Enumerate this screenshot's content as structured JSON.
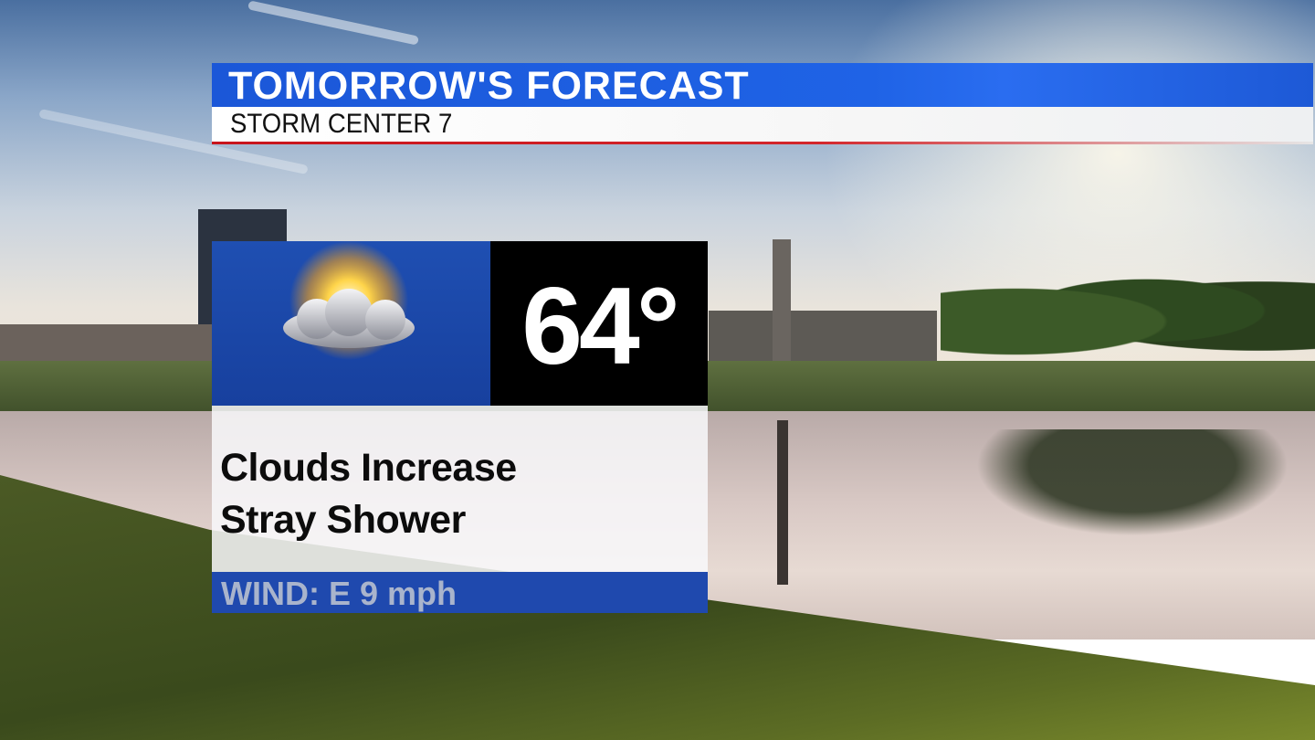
{
  "header": {
    "title": "TOMORROW'S FORECAST",
    "subtitle": "STORM CENTER 7"
  },
  "forecast": {
    "icon": "partly-cloudy-icon",
    "temperature": "64°",
    "description_lines": [
      "Clouds Increase",
      "Stray Shower"
    ],
    "wind": "WIND: E 9 mph"
  },
  "colors": {
    "header_blue": "#1f63e6",
    "accent_red": "#c8141c",
    "card_blue": "#1f4fb2",
    "temp_bg": "#000000"
  }
}
